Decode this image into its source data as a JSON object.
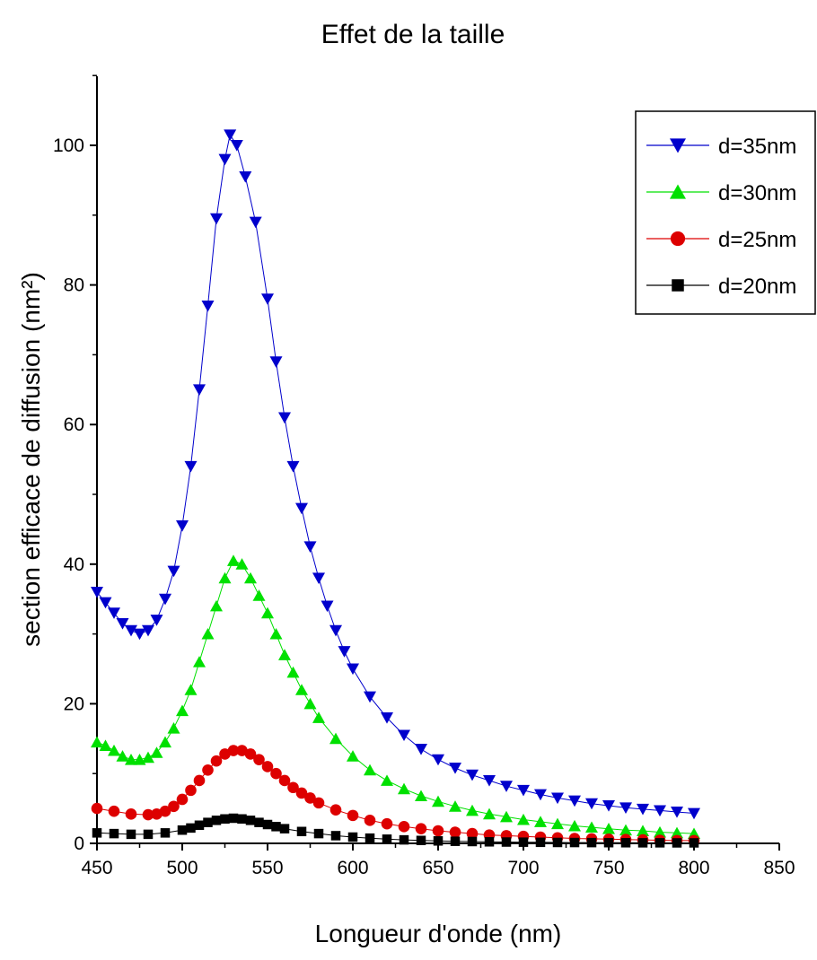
{
  "chart_data": {
    "type": "line",
    "title": "Effet de la taille",
    "xlabel": "Longueur d'onde (nm)",
    "ylabel": "section efficace de diffusion (nm²)",
    "xlim": [
      450,
      850
    ],
    "ylim": [
      0,
      110
    ],
    "xticks": [
      450,
      500,
      550,
      600,
      650,
      700,
      750,
      800,
      850
    ],
    "yticks": [
      0,
      20,
      40,
      60,
      80,
      100
    ],
    "grid": false,
    "legend_position": "top-right",
    "x": [
      450,
      500,
      530,
      550,
      600,
      650,
      700,
      750,
      800
    ],
    "series": [
      {
        "name": "d=35nm",
        "color": "#0000cc",
        "marker": "triangle-down",
        "points": [
          [
            450,
            36
          ],
          [
            455,
            34.5
          ],
          [
            460,
            33
          ],
          [
            465,
            31.5
          ],
          [
            470,
            30.5
          ],
          [
            475,
            30
          ],
          [
            480,
            30.5
          ],
          [
            485,
            32
          ],
          [
            490,
            35
          ],
          [
            495,
            39
          ],
          [
            500,
            45.5
          ],
          [
            505,
            54
          ],
          [
            510,
            65
          ],
          [
            515,
            77
          ],
          [
            520,
            89.5
          ],
          [
            525,
            98
          ],
          [
            528,
            101.5
          ],
          [
            532,
            100
          ],
          [
            537,
            95.5
          ],
          [
            543,
            89
          ],
          [
            550,
            78
          ],
          [
            555,
            69
          ],
          [
            560,
            61
          ],
          [
            565,
            54
          ],
          [
            570,
            48
          ],
          [
            575,
            42.5
          ],
          [
            580,
            38
          ],
          [
            585,
            34
          ],
          [
            590,
            30.5
          ],
          [
            595,
            27.5
          ],
          [
            600,
            25
          ],
          [
            610,
            21
          ],
          [
            620,
            18
          ],
          [
            630,
            15.5
          ],
          [
            640,
            13.5
          ],
          [
            650,
            12
          ],
          [
            660,
            10.8
          ],
          [
            670,
            9.8
          ],
          [
            680,
            9
          ],
          [
            690,
            8.2
          ],
          [
            700,
            7.6
          ],
          [
            710,
            7
          ],
          [
            720,
            6.5
          ],
          [
            730,
            6.1
          ],
          [
            740,
            5.7
          ],
          [
            750,
            5.4
          ],
          [
            760,
            5.1
          ],
          [
            770,
            4.9
          ],
          [
            780,
            4.7
          ],
          [
            790,
            4.5
          ],
          [
            800,
            4.3
          ]
        ]
      },
      {
        "name": "d=30nm",
        "color": "#00e000",
        "marker": "triangle-up",
        "points": [
          [
            450,
            14.5
          ],
          [
            455,
            14
          ],
          [
            460,
            13.3
          ],
          [
            465,
            12.5
          ],
          [
            470,
            12
          ],
          [
            475,
            12
          ],
          [
            480,
            12.3
          ],
          [
            485,
            13
          ],
          [
            490,
            14.5
          ],
          [
            495,
            16.5
          ],
          [
            500,
            19
          ],
          [
            505,
            22
          ],
          [
            510,
            26
          ],
          [
            515,
            30
          ],
          [
            520,
            34
          ],
          [
            525,
            38
          ],
          [
            530,
            40.5
          ],
          [
            535,
            40
          ],
          [
            540,
            38
          ],
          [
            545,
            35.5
          ],
          [
            550,
            33
          ],
          [
            555,
            30
          ],
          [
            560,
            27
          ],
          [
            565,
            24.5
          ],
          [
            570,
            22
          ],
          [
            575,
            20
          ],
          [
            580,
            18
          ],
          [
            590,
            15
          ],
          [
            600,
            12.5
          ],
          [
            610,
            10.5
          ],
          [
            620,
            9
          ],
          [
            630,
            7.8
          ],
          [
            640,
            6.8
          ],
          [
            650,
            6
          ],
          [
            660,
            5.3
          ],
          [
            670,
            4.7
          ],
          [
            680,
            4.2
          ],
          [
            690,
            3.8
          ],
          [
            700,
            3.4
          ],
          [
            710,
            3.1
          ],
          [
            720,
            2.8
          ],
          [
            730,
            2.5
          ],
          [
            740,
            2.3
          ],
          [
            750,
            2.1
          ],
          [
            760,
            1.9
          ],
          [
            770,
            1.8
          ],
          [
            780,
            1.6
          ],
          [
            790,
            1.5
          ],
          [
            800,
            1.4
          ]
        ]
      },
      {
        "name": "d=25nm",
        "color": "#dd0000",
        "marker": "circle",
        "points": [
          [
            450,
            5
          ],
          [
            460,
            4.6
          ],
          [
            470,
            4.2
          ],
          [
            480,
            4.1
          ],
          [
            485,
            4.2
          ],
          [
            490,
            4.6
          ],
          [
            495,
            5.3
          ],
          [
            500,
            6.3
          ],
          [
            505,
            7.6
          ],
          [
            510,
            9
          ],
          [
            515,
            10.5
          ],
          [
            520,
            11.8
          ],
          [
            525,
            12.8
          ],
          [
            530,
            13.3
          ],
          [
            535,
            13.3
          ],
          [
            540,
            12.8
          ],
          [
            545,
            12
          ],
          [
            550,
            11
          ],
          [
            555,
            10
          ],
          [
            560,
            9
          ],
          [
            565,
            8
          ],
          [
            570,
            7.2
          ],
          [
            575,
            6.5
          ],
          [
            580,
            5.8
          ],
          [
            590,
            4.8
          ],
          [
            600,
            4
          ],
          [
            610,
            3.3
          ],
          [
            620,
            2.8
          ],
          [
            630,
            2.4
          ],
          [
            640,
            2.1
          ],
          [
            650,
            1.8
          ],
          [
            660,
            1.6
          ],
          [
            670,
            1.4
          ],
          [
            680,
            1.2
          ],
          [
            690,
            1.1
          ],
          [
            700,
            1
          ],
          [
            710,
            0.9
          ],
          [
            720,
            0.8
          ],
          [
            730,
            0.7
          ],
          [
            740,
            0.65
          ],
          [
            750,
            0.6
          ],
          [
            760,
            0.55
          ],
          [
            770,
            0.5
          ],
          [
            780,
            0.45
          ],
          [
            790,
            0.4
          ],
          [
            800,
            0.4
          ]
        ]
      },
      {
        "name": "d=20nm",
        "color": "#000000",
        "marker": "square",
        "points": [
          [
            450,
            1.5
          ],
          [
            460,
            1.4
          ],
          [
            470,
            1.3
          ],
          [
            480,
            1.3
          ],
          [
            490,
            1.5
          ],
          [
            500,
            1.9
          ],
          [
            505,
            2.2
          ],
          [
            510,
            2.6
          ],
          [
            515,
            3
          ],
          [
            520,
            3.3
          ],
          [
            525,
            3.5
          ],
          [
            530,
            3.6
          ],
          [
            535,
            3.5
          ],
          [
            540,
            3.3
          ],
          [
            545,
            3
          ],
          [
            550,
            2.7
          ],
          [
            555,
            2.4
          ],
          [
            560,
            2.1
          ],
          [
            570,
            1.7
          ],
          [
            580,
            1.4
          ],
          [
            590,
            1.1
          ],
          [
            600,
            0.9
          ],
          [
            610,
            0.75
          ],
          [
            620,
            0.6
          ],
          [
            630,
            0.5
          ],
          [
            640,
            0.42
          ],
          [
            650,
            0.35
          ],
          [
            660,
            0.3
          ],
          [
            670,
            0.26
          ],
          [
            680,
            0.22
          ],
          [
            690,
            0.19
          ],
          [
            700,
            0.17
          ],
          [
            710,
            0.15
          ],
          [
            720,
            0.13
          ],
          [
            730,
            0.12
          ],
          [
            740,
            0.11
          ],
          [
            750,
            0.1
          ],
          [
            760,
            0.09
          ],
          [
            770,
            0.08
          ],
          [
            780,
            0.08
          ],
          [
            790,
            0.07
          ],
          [
            800,
            0.07
          ]
        ]
      }
    ]
  }
}
